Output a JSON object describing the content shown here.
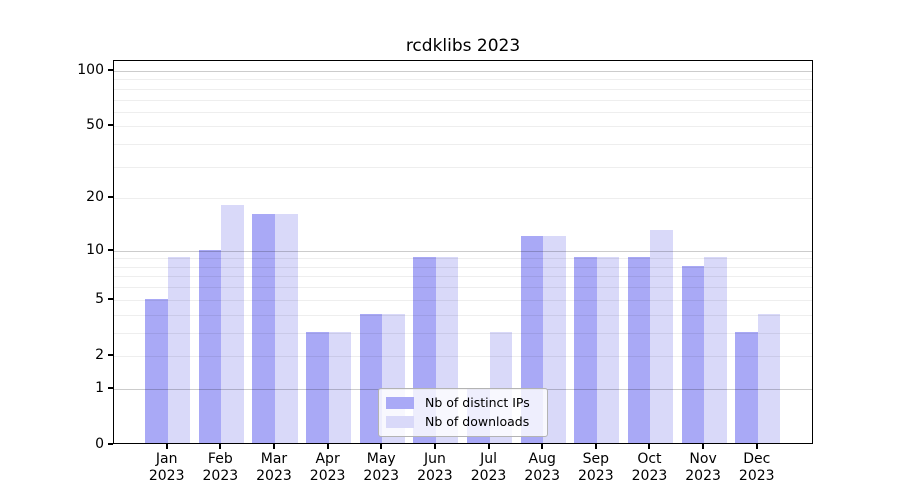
{
  "title": "rcdklibs 2023",
  "chart_data": {
    "type": "bar",
    "title": "rcdklibs 2023",
    "categories": [
      "Jan",
      "Feb",
      "Mar",
      "Apr",
      "May",
      "Jun",
      "Jul",
      "Aug",
      "Sep",
      "Oct",
      "Nov",
      "Dec"
    ],
    "year": "2023",
    "series": [
      {
        "name": "Nb of distinct IPs",
        "color": "#a9a9f6",
        "values": [
          5,
          10,
          16,
          3,
          4,
          9,
          1,
          12,
          9,
          9,
          8,
          3
        ]
      },
      {
        "name": "Nb of downloads",
        "color": "#d9d9f9",
        "values": [
          9,
          18,
          16,
          3,
          4,
          9,
          3,
          12,
          9,
          13,
          9,
          4
        ]
      }
    ],
    "scale": "y = log10(1 + value)",
    "yticks": [
      0,
      1,
      2,
      5,
      10,
      20,
      50,
      100
    ],
    "major_gridlines": [
      1,
      10,
      100
    ],
    "minor_gridlines": [
      2,
      3,
      4,
      5,
      6,
      7,
      8,
      9,
      20,
      30,
      40,
      50,
      60,
      70,
      80,
      90
    ],
    "ylim": [
      0,
      114
    ],
    "xlabel": "",
    "ylabel": "",
    "grid": true,
    "legend_position": "lower center inside"
  },
  "legend": {
    "items": [
      {
        "label": "Nb of distinct IPs",
        "color": "#a9a9f6"
      },
      {
        "label": "Nb of downloads",
        "color": "#d9d9f9"
      }
    ]
  },
  "colors": {
    "background": "#ffffff",
    "spine": "#000000",
    "bar_ips": "#a9a9f6",
    "bar_downloads": "#d9d9f9",
    "grid_major": "#c9c9c9",
    "grid_minor": "#ececec"
  }
}
